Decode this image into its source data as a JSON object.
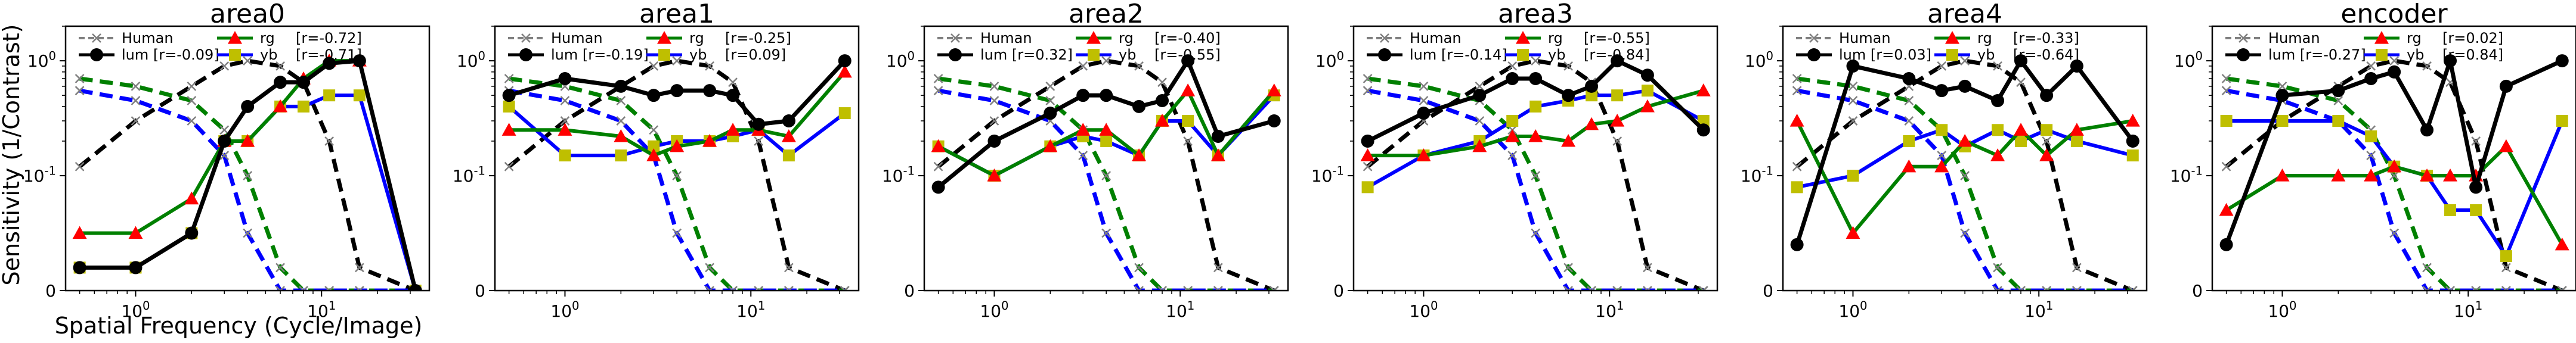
{
  "figure": {
    "ylabel": "Sensitivity (1/Contrast)",
    "xlabel": "Spatial Frequency (Cycle/Image)"
  },
  "colors": {
    "human": "#7f7f7f",
    "lum": "#000000",
    "rg": "#008000",
    "yb": "#0000ff",
    "rg_marker": "#ff0000",
    "yb_marker": "#bfbf00"
  },
  "chart_data": [
    {
      "type": "line",
      "title": "area0",
      "x_scale": "log",
      "y_scale": "symlog",
      "ylim": [
        0,
        2
      ],
      "x_ticks": [
        "10^0",
        "10^1"
      ],
      "y_ticks": [
        "0",
        "10^-1",
        "10^0"
      ],
      "legend": [
        "Human",
        "lum [r=-0.09]",
        "rg",
        "[r=-0.72]",
        "yb",
        "[r=-0.71]"
      ],
      "x": [
        0.5,
        1.0,
        2.0,
        3.0,
        4.0,
        6.0,
        8.0,
        11.0,
        16.0,
        32.0
      ],
      "series": [
        {
          "name": "lum",
          "values": [
            0.02,
            0.02,
            0.05,
            0.2,
            0.4,
            0.65,
            0.65,
            0.95,
            1.0,
            0.0
          ]
        },
        {
          "name": "rg",
          "values": [
            0.05,
            0.05,
            0.08,
            0.2,
            0.2,
            0.4,
            0.7,
            1.0,
            1.0,
            0.0
          ]
        },
        {
          "name": "yb",
          "values": [
            0.02,
            0.02,
            0.05,
            0.2,
            0.2,
            0.4,
            0.4,
            0.5,
            0.5,
            0.0
          ]
        }
      ],
      "human_lum": [
        0.12,
        0.3,
        0.6,
        0.9,
        1.0,
        0.9,
        0.65,
        0.2,
        0.02,
        0.0
      ],
      "human_rg": [
        0.7,
        0.6,
        0.45,
        0.25,
        0.1,
        0.02,
        0.0,
        0.0,
        0.0,
        0.0
      ],
      "human_yb": [
        0.55,
        0.45,
        0.3,
        0.15,
        0.05,
        0.0,
        0.0,
        0.0,
        0.0,
        0.0
      ]
    },
    {
      "type": "line",
      "title": "area1",
      "x_scale": "log",
      "y_scale": "symlog",
      "ylim": [
        0,
        2
      ],
      "x_ticks": [
        "10^0",
        "10^1"
      ],
      "y_ticks": [
        "0",
        "10^-1",
        "10^0"
      ],
      "legend": [
        "Human",
        "lum [r=-0.19]",
        "rg",
        "[r=-0.25]",
        "yb",
        "[r=0.09]"
      ],
      "x": [
        0.5,
        1.0,
        2.0,
        3.0,
        4.0,
        6.0,
        8.0,
        11.0,
        16.0,
        32.0
      ],
      "series": [
        {
          "name": "lum",
          "values": [
            0.5,
            0.7,
            0.6,
            0.5,
            0.55,
            0.55,
            0.5,
            0.28,
            0.3,
            1.0
          ]
        },
        {
          "name": "rg",
          "values": [
            0.25,
            0.25,
            0.22,
            0.15,
            0.18,
            0.2,
            0.25,
            0.25,
            0.22,
            0.8
          ]
        },
        {
          "name": "yb",
          "values": [
            0.4,
            0.15,
            0.15,
            0.18,
            0.2,
            0.2,
            0.22,
            0.25,
            0.15,
            0.35
          ]
        }
      ],
      "human_lum": [
        0.12,
        0.3,
        0.6,
        0.9,
        1.0,
        0.9,
        0.65,
        0.2,
        0.02,
        0.0
      ],
      "human_rg": [
        0.7,
        0.6,
        0.45,
        0.25,
        0.1,
        0.02,
        0.0,
        0.0,
        0.0,
        0.0
      ],
      "human_yb": [
        0.55,
        0.45,
        0.3,
        0.15,
        0.05,
        0.0,
        0.0,
        0.0,
        0.0,
        0.0
      ]
    },
    {
      "type": "line",
      "title": "area2",
      "x_scale": "log",
      "y_scale": "symlog",
      "ylim": [
        0,
        2
      ],
      "x_ticks": [
        "10^0",
        "10^1"
      ],
      "y_ticks": [
        "0",
        "10^-1",
        "10^0"
      ],
      "legend": [
        "Human",
        "lum [r=0.32]",
        "rg",
        "[r=-0.40]",
        "yb",
        "[r=-0.55]"
      ],
      "x": [
        0.5,
        1.0,
        2.0,
        3.0,
        4.0,
        6.0,
        8.0,
        11.0,
        16.0,
        32.0
      ],
      "series": [
        {
          "name": "lum",
          "values": [
            0.09,
            0.2,
            0.35,
            0.5,
            0.5,
            0.4,
            0.45,
            1.0,
            0.22,
            0.3
          ]
        },
        {
          "name": "rg",
          "values": [
            0.18,
            0.1,
            0.18,
            0.25,
            0.25,
            0.15,
            0.3,
            0.55,
            0.15,
            0.55
          ]
        },
        {
          "name": "yb",
          "values": [
            0.18,
            0.1,
            0.18,
            0.22,
            0.2,
            0.15,
            0.3,
            0.3,
            0.15,
            0.5
          ]
        }
      ],
      "human_lum": [
        0.12,
        0.3,
        0.6,
        0.9,
        1.0,
        0.9,
        0.65,
        0.2,
        0.02,
        0.0
      ],
      "human_rg": [
        0.7,
        0.6,
        0.45,
        0.25,
        0.1,
        0.02,
        0.0,
        0.0,
        0.0,
        0.0
      ],
      "human_yb": [
        0.55,
        0.45,
        0.3,
        0.15,
        0.05,
        0.0,
        0.0,
        0.0,
        0.0,
        0.0
      ]
    },
    {
      "type": "line",
      "title": "area3",
      "x_scale": "log",
      "y_scale": "symlog",
      "ylim": [
        0,
        2
      ],
      "x_ticks": [
        "10^0",
        "10^1"
      ],
      "y_ticks": [
        "0",
        "10^-1",
        "10^0"
      ],
      "legend": [
        "Human",
        "lum [r=-0.14]",
        "rg",
        "[r=-0.55]",
        "yb",
        "[r=-0.84]"
      ],
      "x": [
        0.5,
        1.0,
        2.0,
        3.0,
        4.0,
        6.0,
        8.0,
        11.0,
        16.0,
        32.0
      ],
      "series": [
        {
          "name": "lum",
          "values": [
            0.2,
            0.35,
            0.5,
            0.7,
            0.7,
            0.5,
            0.6,
            1.0,
            0.75,
            0.25
          ]
        },
        {
          "name": "rg",
          "values": [
            0.15,
            0.15,
            0.18,
            0.22,
            0.22,
            0.2,
            0.28,
            0.3,
            0.4,
            0.55
          ]
        },
        {
          "name": "yb",
          "values": [
            0.09,
            0.15,
            0.2,
            0.3,
            0.4,
            0.45,
            0.5,
            0.5,
            0.55,
            0.3
          ]
        }
      ],
      "human_lum": [
        0.12,
        0.3,
        0.6,
        0.9,
        1.0,
        0.9,
        0.65,
        0.2,
        0.02,
        0.0
      ],
      "human_rg": [
        0.7,
        0.6,
        0.45,
        0.25,
        0.1,
        0.02,
        0.0,
        0.0,
        0.0,
        0.0
      ],
      "human_yb": [
        0.55,
        0.45,
        0.3,
        0.15,
        0.05,
        0.0,
        0.0,
        0.0,
        0.0,
        0.0
      ]
    },
    {
      "type": "line",
      "title": "area4",
      "x_scale": "log",
      "y_scale": "symlog",
      "ylim": [
        0,
        2
      ],
      "x_ticks": [
        "10^0",
        "10^1"
      ],
      "y_ticks": [
        "0",
        "10^-1",
        "10^0"
      ],
      "legend": [
        "Human",
        "lum [r=0.03]",
        "rg",
        "[r=-0.33]",
        "yb",
        "[r=-0.64]"
      ],
      "x": [
        0.5,
        1.0,
        2.0,
        3.0,
        4.0,
        6.0,
        8.0,
        11.0,
        16.0,
        32.0
      ],
      "series": [
        {
          "name": "lum",
          "values": [
            0.04,
            0.9,
            0.7,
            0.55,
            0.6,
            0.45,
            1.0,
            0.5,
            0.9,
            0.2
          ]
        },
        {
          "name": "rg",
          "values": [
            0.3,
            0.05,
            0.12,
            0.12,
            0.2,
            0.15,
            0.25,
            0.15,
            0.25,
            0.3
          ]
        },
        {
          "name": "yb",
          "values": [
            0.09,
            0.1,
            0.2,
            0.25,
            0.18,
            0.25,
            0.2,
            0.25,
            0.2,
            0.15
          ]
        }
      ],
      "human_lum": [
        0.12,
        0.3,
        0.6,
        0.9,
        1.0,
        0.9,
        0.65,
        0.2,
        0.02,
        0.0
      ],
      "human_rg": [
        0.7,
        0.6,
        0.45,
        0.25,
        0.1,
        0.02,
        0.0,
        0.0,
        0.0,
        0.0
      ],
      "human_yb": [
        0.55,
        0.45,
        0.3,
        0.15,
        0.05,
        0.0,
        0.0,
        0.0,
        0.0,
        0.0
      ]
    },
    {
      "type": "line",
      "title": "encoder",
      "x_scale": "log",
      "y_scale": "symlog",
      "ylim": [
        0,
        2
      ],
      "x_ticks": [
        "10^0",
        "10^1"
      ],
      "y_ticks": [
        "0",
        "10^-1",
        "10^0"
      ],
      "legend": [
        "Human",
        "lum [r=-0.27]",
        "rg",
        "[r=0.02]",
        "yb",
        "[r=0.84]"
      ],
      "x": [
        0.5,
        1.0,
        2.0,
        3.0,
        4.0,
        6.0,
        8.0,
        11.0,
        16.0,
        32.0
      ],
      "series": [
        {
          "name": "lum",
          "values": [
            0.04,
            0.5,
            0.55,
            0.7,
            0.8,
            0.25,
            1.0,
            0.09,
            0.6,
            1.0
          ]
        },
        {
          "name": "rg",
          "values": [
            0.07,
            0.1,
            0.1,
            0.1,
            0.12,
            0.1,
            0.1,
            0.1,
            0.18,
            0.04
          ]
        },
        {
          "name": "yb",
          "values": [
            0.3,
            0.3,
            0.3,
            0.22,
            0.12,
            0.1,
            0.07,
            0.07,
            0.03,
            0.3
          ]
        }
      ],
      "human_lum": [
        0.12,
        0.3,
        0.6,
        0.9,
        1.0,
        0.9,
        0.65,
        0.2,
        0.02,
        0.0
      ],
      "human_rg": [
        0.7,
        0.6,
        0.45,
        0.25,
        0.1,
        0.02,
        0.0,
        0.0,
        0.0,
        0.0
      ],
      "human_yb": [
        0.55,
        0.45,
        0.3,
        0.15,
        0.05,
        0.0,
        0.0,
        0.0,
        0.0,
        0.0
      ]
    }
  ]
}
